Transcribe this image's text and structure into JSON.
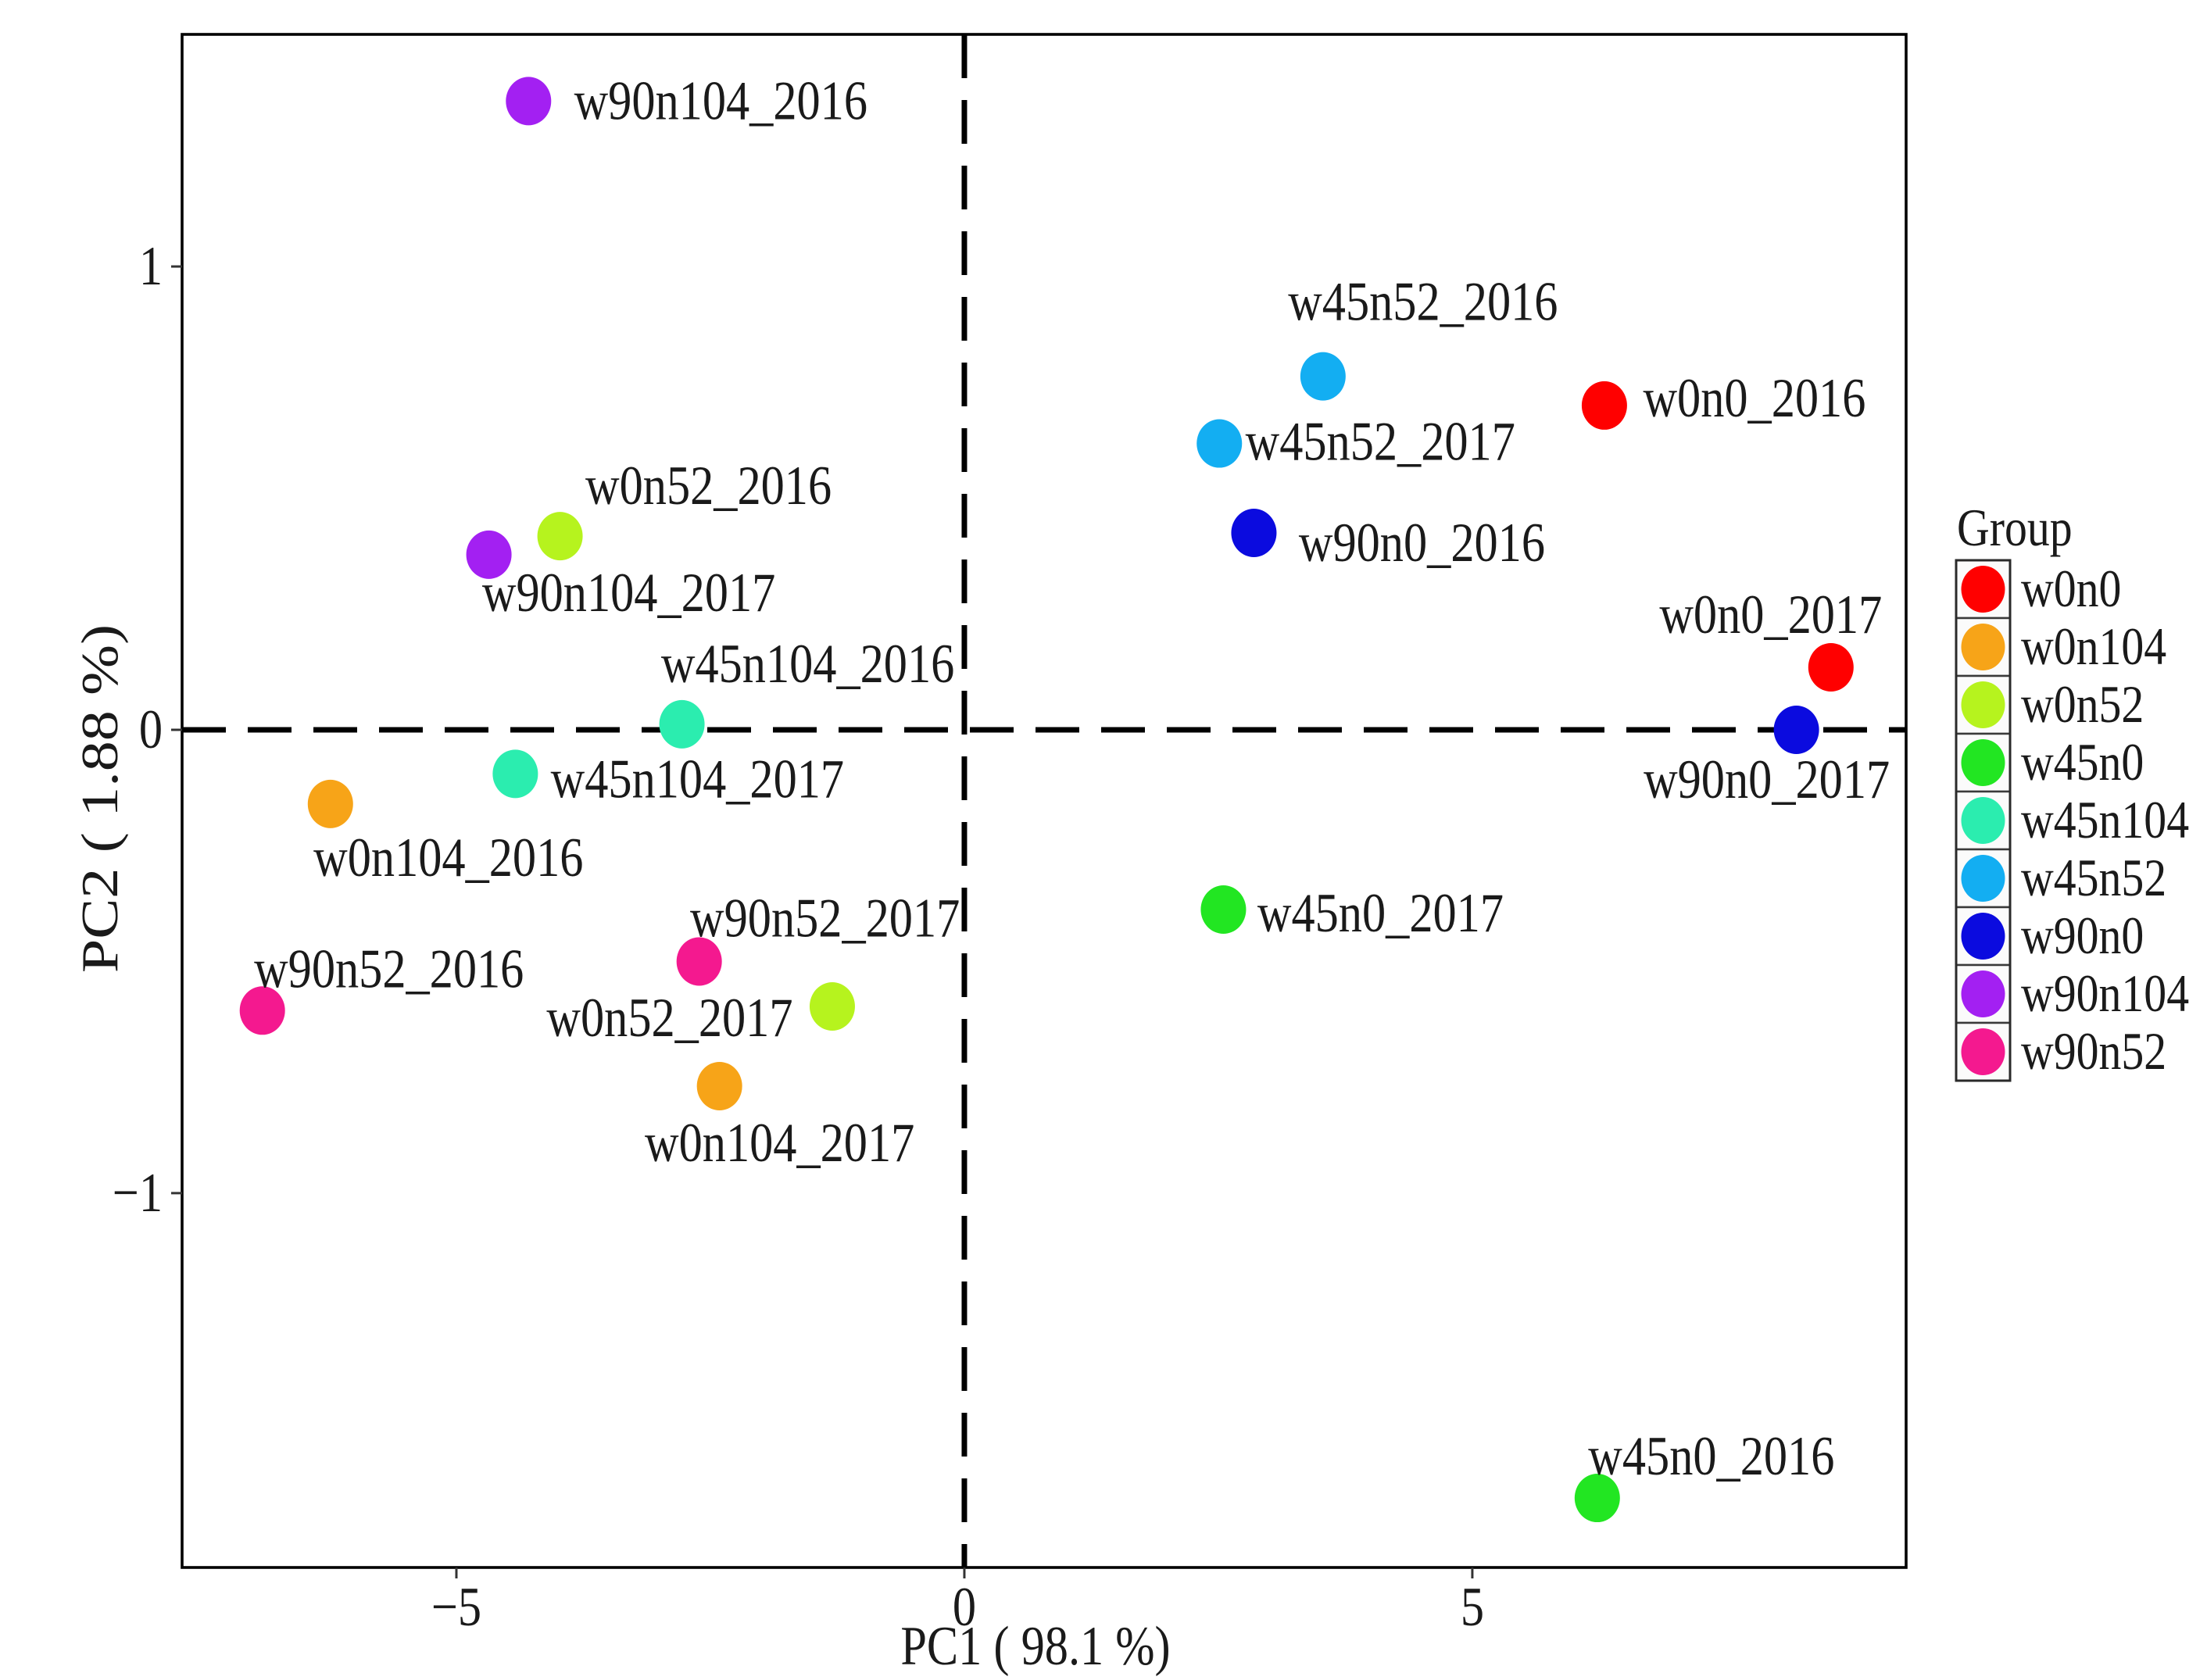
{
  "chart_data": {
    "type": "scatter",
    "xlabel": "PC1 ( 98.1 %)",
    "ylabel": "PC2 ( 1.88 %)",
    "xlim": [
      -7.7,
      9.27
    ],
    "ylim": [
      -1.808,
      1.501
    ],
    "grid": false,
    "reference_lines": {
      "x": 0,
      "y": 0
    },
    "xticks": [
      {
        "value": -5,
        "label": "−5"
      },
      {
        "value": 0,
        "label": "0"
      },
      {
        "value": 5,
        "label": "5"
      }
    ],
    "yticks": [
      {
        "value": 1,
        "label": "1"
      },
      {
        "value": 0,
        "label": "0"
      },
      {
        "value": -1,
        "label": "−1"
      }
    ],
    "legend": {
      "title": "Group",
      "position": "right"
    },
    "groups": [
      {
        "name": "w0n0",
        "color": "#FF0000",
        "points": [
          {
            "label": "w0n0_2016",
            "x": 6.3,
            "y": 0.7
          },
          {
            "label": "w0n0_2017",
            "x": 8.53,
            "y": 0.135
          }
        ]
      },
      {
        "name": "w0n104",
        "color": "#F7A418",
        "points": [
          {
            "label": "w0n104_2016",
            "x": -6.24,
            "y": -0.16
          },
          {
            "label": "w0n104_2017",
            "x": -2.41,
            "y": -0.769
          }
        ]
      },
      {
        "name": "w0n52",
        "color": "#B6F31E",
        "points": [
          {
            "label": "w0n52_2016",
            "x": -3.98,
            "y": 0.418
          },
          {
            "label": "w0n52_2017",
            "x": -1.3,
            "y": -0.597
          }
        ]
      },
      {
        "name": "w45n0",
        "color": "#22E622",
        "points": [
          {
            "label": "w45n0_2016",
            "x": 6.23,
            "y": -1.658
          },
          {
            "label": "w45n0_2017",
            "x": 2.55,
            "y": -0.388
          }
        ]
      },
      {
        "name": "w45n104",
        "color": "#2BEDAF",
        "points": [
          {
            "label": "w45n104_2016",
            "x": -2.78,
            "y": 0.012
          },
          {
            "label": "w45n104_2017",
            "x": -4.42,
            "y": -0.095
          }
        ]
      },
      {
        "name": "w45n52",
        "color": "#13AEF2",
        "points": [
          {
            "label": "w45n52_2016",
            "x": 3.53,
            "y": 0.763
          },
          {
            "label": "w45n52_2017",
            "x": 2.51,
            "y": 0.618
          }
        ]
      },
      {
        "name": "w90n0",
        "color": "#0B0BDF",
        "points": [
          {
            "label": "w90n0_2016",
            "x": 2.85,
            "y": 0.425
          },
          {
            "label": "w90n0_2017",
            "x": 8.19,
            "y": 0.0
          }
        ]
      },
      {
        "name": "w90n104",
        "color": "#A320F2",
        "points": [
          {
            "label": "w90n104_2016",
            "x": -4.29,
            "y": 1.357
          },
          {
            "label": "w90n104_2017",
            "x": -4.68,
            "y": 0.378
          }
        ]
      },
      {
        "name": "w90n52",
        "color": "#F4198F",
        "points": [
          {
            "label": "w90n52_2016",
            "x": -6.91,
            "y": -0.606
          },
          {
            "label": "w90n52_2017",
            "x": -2.61,
            "y": -0.5
          }
        ]
      }
    ]
  }
}
